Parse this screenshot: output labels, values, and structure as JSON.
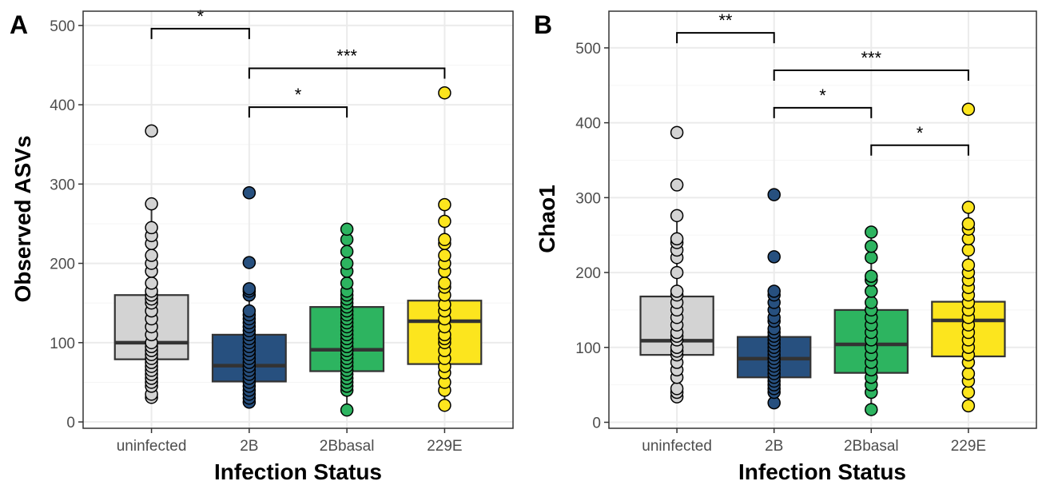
{
  "chart_data": [
    {
      "panel_label": "A",
      "type": "box",
      "xlabel": "Infection Status",
      "ylabel": "Observed ASVs",
      "categories": [
        "uninfected",
        "2B",
        "2Bbasal",
        "229E"
      ],
      "ylim": [
        -8,
        518
      ],
      "yticks": [
        0,
        100,
        200,
        300,
        400,
        500
      ],
      "grid": true,
      "boxes": [
        {
          "q1": 79,
          "median": 100,
          "q3": 160,
          "whisker_low": 30,
          "whisker_high": 275
        },
        {
          "q1": 51,
          "median": 71,
          "q3": 110,
          "whisker_low": 25,
          "whisker_high": 168
        },
        {
          "q1": 64,
          "median": 91,
          "q3": 145,
          "whisker_low": 15,
          "whisker_high": 243
        },
        {
          "q1": 73,
          "median": 127,
          "q3": 153,
          "whisker_low": 21,
          "whisker_high": 274
        }
      ],
      "points": [
        [
          31,
          35,
          45,
          50,
          55,
          60,
          65,
          70,
          75,
          80,
          85,
          90,
          95,
          100,
          110,
          120,
          130,
          140,
          150,
          155,
          160,
          165,
          175,
          190,
          200,
          210,
          225,
          235,
          245,
          275,
          367
        ],
        [
          25,
          30,
          35,
          40,
          45,
          50,
          55,
          60,
          65,
          70,
          75,
          80,
          85,
          90,
          95,
          100,
          105,
          110,
          115,
          120,
          125,
          130,
          135,
          140,
          160,
          165,
          168,
          201,
          289
        ],
        [
          15,
          40,
          45,
          50,
          55,
          60,
          65,
          70,
          75,
          80,
          85,
          90,
          95,
          100,
          105,
          110,
          115,
          120,
          125,
          130,
          135,
          140,
          145,
          150,
          155,
          160,
          165,
          175,
          190,
          200,
          215,
          230,
          243
        ],
        [
          21,
          40,
          50,
          62,
          70,
          80,
          90,
          100,
          105,
          110,
          120,
          130,
          140,
          148,
          160,
          170,
          175,
          190,
          200,
          210,
          225,
          230,
          253,
          274,
          415
        ]
      ],
      "significance": [
        {
          "from": "uninfected",
          "to": "2B",
          "y": 496,
          "label": "*"
        },
        {
          "from": "2B",
          "to": "229E",
          "y": 446,
          "label": "***"
        },
        {
          "from": "2B",
          "to": "2Bbasal",
          "y": 397,
          "label": "*"
        }
      ]
    },
    {
      "panel_label": "B",
      "type": "box",
      "xlabel": "Infection Status",
      "ylabel": "Chao1",
      "categories": [
        "uninfected",
        "2B",
        "2Bbasal",
        "229E"
      ],
      "ylim": [
        -8,
        549
      ],
      "yticks": [
        0,
        100,
        200,
        300,
        400,
        500
      ],
      "grid": true,
      "boxes": [
        {
          "q1": 90,
          "median": 109,
          "q3": 168,
          "whisker_low": 34,
          "whisker_high": 276
        },
        {
          "q1": 60,
          "median": 85,
          "q3": 114,
          "whisker_low": 26,
          "whisker_high": 175
        },
        {
          "q1": 66,
          "median": 104,
          "q3": 150,
          "whisker_low": 17,
          "whisker_high": 254
        },
        {
          "q1": 88,
          "median": 136,
          "q3": 161,
          "whisker_low": 22,
          "whisker_high": 287
        }
      ],
      "points": [
        [
          34,
          40,
          45,
          60,
          70,
          80,
          90,
          95,
          100,
          110,
          115,
          120,
          130,
          140,
          150,
          160,
          170,
          175,
          200,
          220,
          230,
          240,
          245,
          276,
          317,
          387
        ],
        [
          26,
          40,
          45,
          50,
          55,
          60,
          65,
          70,
          75,
          80,
          85,
          90,
          95,
          100,
          105,
          110,
          115,
          120,
          125,
          135,
          140,
          150,
          160,
          170,
          175,
          221,
          304
        ],
        [
          17,
          40,
          50,
          60,
          70,
          80,
          90,
          100,
          110,
          120,
          130,
          140,
          150,
          160,
          175,
          190,
          195,
          220,
          235,
          254
        ],
        [
          22,
          40,
          55,
          65,
          80,
          90,
          100,
          110,
          120,
          130,
          140,
          150,
          160,
          170,
          180,
          190,
          200,
          210,
          230,
          245,
          258,
          265,
          287,
          418
        ]
      ],
      "significance": [
        {
          "from": "uninfected",
          "to": "2B",
          "y": 520,
          "label": "**"
        },
        {
          "from": "2B",
          "to": "229E",
          "y": 470,
          "label": "***"
        },
        {
          "from": "2B",
          "to": "2Bbasal",
          "y": 420,
          "label": "*"
        },
        {
          "from": "2Bbasal",
          "to": "229E",
          "y": 370,
          "label": "*"
        }
      ]
    }
  ],
  "colors": {
    "uninfected": "#d3d3d3",
    "2B": "#27507f",
    "2Bbasal": "#2db460",
    "229E": "#fce51e",
    "box_outline": "#333333",
    "grid_major": "#ebebeb",
    "grid_minor": "#f5f5f5",
    "panel_border": "#333333"
  }
}
